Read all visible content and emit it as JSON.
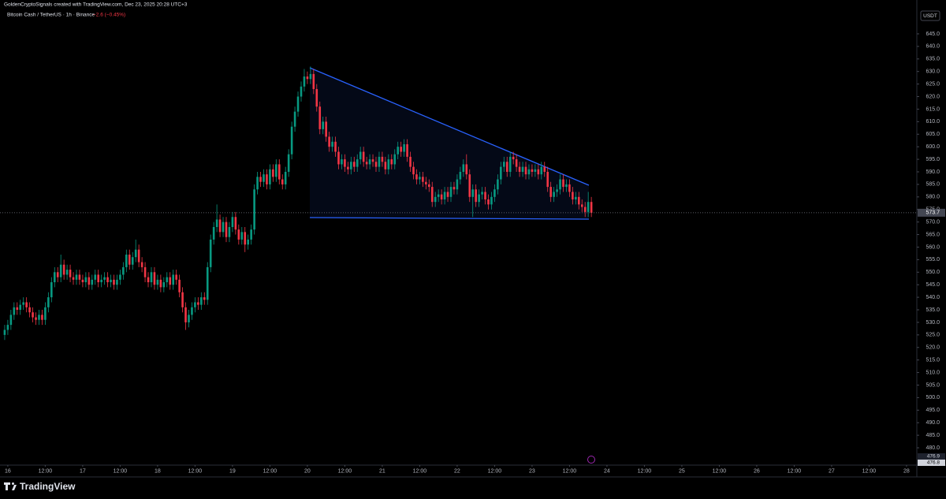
{
  "chart_data": {
    "type": "candlestick",
    "header": "GoldenCryptoSignals created with TradingView.com, Dec 23, 2025 20:28 UTC+3",
    "title": "Bitcoin Cash / TetherUS · 1h · Binance",
    "change": "−2.6 (−0.45%)",
    "currency": "USDT",
    "brand": "TradingView",
    "last_price": 573.7,
    "bottom_labels": [
      "476.9",
      "476.8"
    ],
    "up_color": "#089981",
    "down_color": "#f23645",
    "xlim": [
      -2.5,
      291.3
    ],
    "ylim": [
      473.1,
      658.5
    ],
    "xticks": [
      {
        "value": 0,
        "label": "16"
      },
      {
        "value": 12,
        "label": "12:00"
      },
      {
        "value": 24,
        "label": "17"
      },
      {
        "value": 36,
        "label": "12:00"
      },
      {
        "value": 48,
        "label": "18"
      },
      {
        "value": 60,
        "label": "12:00"
      },
      {
        "value": 72,
        "label": "19"
      },
      {
        "value": 84,
        "label": "12:00"
      },
      {
        "value": 96,
        "label": "20"
      },
      {
        "value": 108,
        "label": "12:00"
      },
      {
        "value": 120,
        "label": "21"
      },
      {
        "value": 132,
        "label": "12:00"
      },
      {
        "value": 144,
        "label": "22"
      },
      {
        "value": 156,
        "label": "12:00"
      },
      {
        "value": 168,
        "label": "23"
      },
      {
        "value": 180,
        "label": "12:00"
      },
      {
        "value": 192,
        "label": "24"
      },
      {
        "value": 204,
        "label": "12:00"
      },
      {
        "value": 216,
        "label": "25"
      },
      {
        "value": 228,
        "label": "12:00"
      },
      {
        "value": 240,
        "label": "26"
      },
      {
        "value": 252,
        "label": "12:00"
      },
      {
        "value": 264,
        "label": "27"
      },
      {
        "value": 276,
        "label": "12:00"
      },
      {
        "value": 288,
        "label": "28"
      }
    ],
    "yticks": [
      {
        "value": 645,
        "label": "645.0"
      },
      {
        "value": 640,
        "label": "640.0"
      },
      {
        "value": 635,
        "label": "635.0"
      },
      {
        "value": 630,
        "label": "630.0"
      },
      {
        "value": 625,
        "label": "625.0"
      },
      {
        "value": 620,
        "label": "620.0"
      },
      {
        "value": 615,
        "label": "615.0"
      },
      {
        "value": 610,
        "label": "610.0"
      },
      {
        "value": 605,
        "label": "605.0"
      },
      {
        "value": 600,
        "label": "600.0"
      },
      {
        "value": 595,
        "label": "595.0"
      },
      {
        "value": 590,
        "label": "590.0"
      },
      {
        "value": 585,
        "label": "585.0"
      },
      {
        "value": 580,
        "label": "580.0"
      },
      {
        "value": 575,
        "label": "575.0"
      },
      {
        "value": 570,
        "label": "570.0"
      },
      {
        "value": 565,
        "label": "565.0"
      },
      {
        "value": 560,
        "label": "560.0"
      },
      {
        "value": 555,
        "label": "555.0"
      },
      {
        "value": 550,
        "label": "550.0"
      },
      {
        "value": 545,
        "label": "545.0"
      },
      {
        "value": 540,
        "label": "540.0"
      },
      {
        "value": 535,
        "label": "535.0"
      },
      {
        "value": 530,
        "label": "530.0"
      },
      {
        "value": 525,
        "label": "525.0"
      },
      {
        "value": 520,
        "label": "520.0"
      },
      {
        "value": 515,
        "label": "515.0"
      },
      {
        "value": 510,
        "label": "510.0"
      },
      {
        "value": 505,
        "label": "505.0"
      },
      {
        "value": 500,
        "label": "500.0"
      },
      {
        "value": 495,
        "label": "495.0"
      },
      {
        "value": 490,
        "label": "490.0"
      },
      {
        "value": 485,
        "label": "485.0"
      },
      {
        "value": 480,
        "label": "480.0"
      }
    ],
    "x": [
      -1,
      0,
      1,
      2,
      3,
      4,
      5,
      6,
      7,
      8,
      9,
      10,
      11,
      12,
      13,
      14,
      15,
      16,
      17,
      18,
      19,
      20,
      21,
      22,
      23,
      24,
      25,
      26,
      27,
      28,
      29,
      30,
      31,
      32,
      33,
      34,
      35,
      36,
      37,
      38,
      39,
      40,
      41,
      42,
      43,
      44,
      45,
      46,
      47,
      48,
      49,
      50,
      51,
      52,
      53,
      54,
      55,
      56,
      57,
      58,
      59,
      60,
      61,
      62,
      63,
      64,
      65,
      66,
      67,
      68,
      69,
      70,
      71,
      72,
      73,
      74,
      75,
      76,
      77,
      78,
      79,
      80,
      81,
      82,
      83,
      84,
      85,
      86,
      87,
      88,
      89,
      90,
      91,
      92,
      93,
      94,
      95,
      96,
      97,
      98,
      99,
      100,
      101,
      102,
      103,
      104,
      105,
      106,
      107,
      108,
      109,
      110,
      111,
      112,
      113,
      114,
      115,
      116,
      117,
      118,
      119,
      120,
      121,
      122,
      123,
      124,
      125,
      126,
      127,
      128,
      129,
      130,
      131,
      132,
      133,
      134,
      135,
      136,
      137,
      138,
      139,
      140,
      141,
      142,
      143,
      144,
      145,
      146,
      147,
      148,
      149,
      150,
      151,
      152,
      153,
      154,
      155,
      156,
      157,
      158,
      159,
      160,
      161,
      162,
      163,
      164,
      165,
      166,
      167,
      168,
      169,
      170,
      171,
      172,
      173,
      174,
      175,
      176,
      177,
      178,
      179,
      180,
      181,
      182,
      183,
      184,
      185,
      186,
      187
    ],
    "open": [
      525,
      527,
      529,
      533,
      536,
      535,
      537,
      538,
      536,
      534,
      532,
      531,
      533,
      531,
      536,
      540,
      546,
      550,
      548,
      553,
      549,
      551,
      548,
      547,
      549,
      547,
      546,
      548,
      545,
      547,
      549,
      546,
      547,
      548,
      546,
      547,
      545,
      547,
      549,
      552,
      557,
      553,
      556,
      559,
      554,
      552,
      548,
      546,
      550,
      545,
      547,
      544,
      546,
      548,
      545,
      549,
      547,
      542,
      536,
      530,
      533,
      536,
      538,
      537,
      540,
      539,
      552,
      563,
      568,
      571,
      566,
      570,
      564,
      568,
      572,
      567,
      563,
      566,
      561,
      563,
      567,
      583,
      588,
      586,
      589,
      585,
      591,
      588,
      593,
      587,
      585,
      590,
      597,
      608,
      614,
      620,
      624,
      628,
      627,
      629,
      623,
      616,
      607,
      610,
      604,
      600,
      602,
      598,
      593,
      595,
      592,
      591,
      594,
      592,
      595,
      598,
      594,
      593,
      595,
      594,
      592,
      596,
      594,
      591,
      595,
      593,
      597,
      600,
      598,
      601,
      596,
      592,
      589,
      587,
      588,
      586,
      585,
      584,
      578,
      580,
      581,
      579,
      582,
      580,
      584,
      583,
      587,
      590,
      593,
      589,
      580,
      583,
      578,
      581,
      582,
      579,
      577,
      580,
      583,
      587,
      592,
      594,
      590,
      596,
      595,
      592,
      590,
      592,
      589,
      591,
      590,
      591,
      589,
      592,
      590,
      584,
      580,
      582,
      583,
      587,
      584,
      585,
      582,
      579,
      580,
      577,
      576,
      574,
      578
    ],
    "high": [
      529,
      531,
      535,
      538,
      538,
      539,
      540,
      540,
      538,
      536,
      534,
      535,
      535,
      538,
      542,
      548,
      552,
      552,
      557,
      555,
      553,
      553,
      550,
      551,
      551,
      549,
      550,
      550,
      549,
      551,
      551,
      549,
      550,
      550,
      549,
      549,
      549,
      551,
      554,
      559,
      559,
      558,
      563,
      561,
      556,
      554,
      550,
      552,
      552,
      549,
      549,
      548,
      550,
      550,
      551,
      551,
      549,
      544,
      538,
      535,
      538,
      540,
      540,
      542,
      542,
      554,
      565,
      570,
      577,
      573,
      572,
      572,
      570,
      574,
      574,
      569,
      568,
      568,
      565,
      569,
      585,
      590,
      590,
      591,
      591,
      593,
      593,
      595,
      595,
      589,
      592,
      599,
      610,
      616,
      622,
      626,
      631,
      630,
      632,
      631,
      625,
      618,
      612,
      612,
      606,
      604,
      604,
      600,
      597,
      597,
      594,
      596,
      596,
      597,
      600,
      600,
      596,
      597,
      597,
      596,
      598,
      598,
      596,
      597,
      597,
      599,
      602,
      602,
      603,
      603,
      598,
      594,
      591,
      590,
      590,
      588,
      587,
      586,
      582,
      583,
      583,
      584,
      584,
      586,
      586,
      589,
      592,
      595,
      597,
      591,
      585,
      585,
      583,
      584,
      584,
      581,
      582,
      585,
      589,
      594,
      596,
      596,
      598,
      598,
      597,
      594,
      594,
      594,
      593,
      593,
      593,
      593,
      594,
      594,
      592,
      586,
      584,
      585,
      589,
      589,
      587,
      587,
      584,
      582,
      582,
      579,
      578,
      582,
      580
    ],
    "low": [
      523,
      525,
      527,
      531,
      533,
      533,
      535,
      534,
      532,
      530,
      529,
      529,
      529,
      529,
      534,
      538,
      544,
      546,
      546,
      547,
      547,
      546,
      545,
      545,
      545,
      544,
      544,
      543,
      543,
      545,
      544,
      544,
      545,
      544,
      544,
      543,
      543,
      545,
      547,
      550,
      551,
      551,
      554,
      552,
      550,
      546,
      544,
      544,
      543,
      543,
      542,
      542,
      544,
      543,
      543,
      545,
      540,
      534,
      527,
      528,
      531,
      534,
      535,
      535,
      537,
      537,
      550,
      561,
      566,
      564,
      564,
      562,
      562,
      566,
      565,
      561,
      561,
      558,
      559,
      561,
      565,
      581,
      584,
      584,
      583,
      583,
      586,
      586,
      585,
      583,
      583,
      588,
      595,
      606,
      612,
      618,
      622,
      625,
      625,
      621,
      614,
      605,
      605,
      602,
      598,
      598,
      596,
      591,
      591,
      590,
      589,
      589,
      590,
      590,
      593,
      592,
      591,
      591,
      592,
      590,
      590,
      592,
      589,
      589,
      591,
      591,
      595,
      596,
      596,
      594,
      590,
      587,
      585,
      585,
      584,
      583,
      582,
      576,
      576,
      578,
      577,
      577,
      578,
      578,
      581,
      581,
      585,
      588,
      587,
      578,
      572,
      576,
      576,
      579,
      577,
      575,
      575,
      578,
      581,
      585,
      590,
      588,
      588,
      593,
      590,
      588,
      588,
      587,
      587,
      588,
      588,
      587,
      587,
      588,
      582,
      578,
      578,
      580,
      581,
      582,
      582,
      580,
      577,
      577,
      575,
      574,
      572,
      572,
      572
    ],
    "close": [
      527,
      529,
      533,
      536,
      535,
      537,
      538,
      536,
      534,
      532,
      531,
      533,
      531,
      536,
      540,
      546,
      550,
      548,
      553,
      549,
      551,
      548,
      547,
      549,
      547,
      546,
      548,
      545,
      547,
      549,
      546,
      547,
      548,
      546,
      547,
      545,
      547,
      549,
      552,
      557,
      553,
      556,
      559,
      554,
      552,
      548,
      546,
      550,
      545,
      547,
      544,
      546,
      548,
      545,
      549,
      547,
      542,
      536,
      530,
      533,
      536,
      538,
      537,
      540,
      539,
      552,
      563,
      568,
      571,
      566,
      570,
      564,
      568,
      572,
      567,
      563,
      566,
      561,
      563,
      567,
      583,
      588,
      586,
      589,
      585,
      591,
      588,
      593,
      587,
      585,
      590,
      597,
      608,
      614,
      620,
      624,
      628,
      627,
      629,
      623,
      616,
      607,
      610,
      604,
      600,
      602,
      598,
      593,
      595,
      592,
      591,
      594,
      592,
      595,
      598,
      594,
      593,
      595,
      594,
      592,
      596,
      594,
      591,
      595,
      593,
      597,
      600,
      598,
      601,
      596,
      592,
      589,
      587,
      588,
      586,
      585,
      584,
      578,
      580,
      581,
      579,
      582,
      580,
      584,
      583,
      587,
      590,
      593,
      589,
      580,
      583,
      578,
      581,
      582,
      579,
      577,
      580,
      583,
      587,
      592,
      594,
      590,
      596,
      595,
      592,
      590,
      592,
      589,
      591,
      590,
      591,
      589,
      592,
      590,
      584,
      580,
      582,
      583,
      587,
      584,
      585,
      582,
      579,
      580,
      577,
      576,
      574,
      578,
      573.7
    ]
  }
}
